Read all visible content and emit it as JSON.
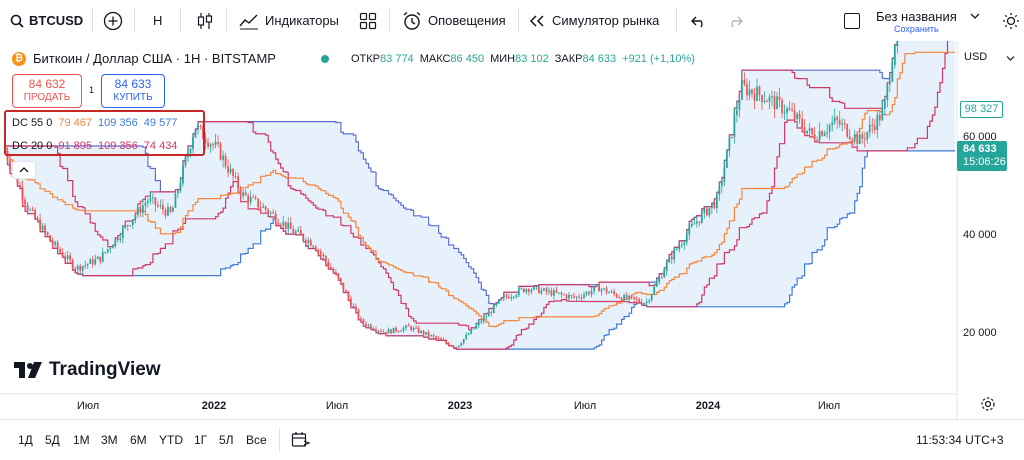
{
  "toolbar": {
    "symbol": "BTCUSD",
    "interval": "Н",
    "indicators_label": "Индикаторы",
    "alerts_label": "Оповещения",
    "replay_label": "Симулятор рынка",
    "layout_name": "Без названия",
    "layout_status": "Сохранить"
  },
  "header": {
    "title": "Биткоин / Доллар США · 1H · BITSTAMP",
    "open_label": "ОТКР",
    "open_value": "83 774",
    "high_label": "МАКС",
    "high_value": "86 450",
    "low_label": "МИН",
    "low_value": "83 102",
    "close_label": "ЗАКР",
    "close_value": "84 633",
    "change": "+921 (+1,10%)",
    "currency": "USD"
  },
  "trade": {
    "sell_price": "84 632",
    "sell_label": "ПРОДАТЬ",
    "spread": "1",
    "buy_price": "84 633",
    "buy_label": "КУПИТЬ"
  },
  "indicators": [
    {
      "name": "DC 55 0",
      "upper": "79 467",
      "basis": "109 356",
      "lower": "49 577"
    },
    {
      "name": "DC 20 0",
      "upper": "91 895",
      "basis": "109 356",
      "lower": "74 434"
    }
  ],
  "price_scale": {
    "ticks": [
      "60 000",
      "40 000",
      "20 000"
    ],
    "high_marker": "98 327",
    "last_price": "84 633",
    "countdown": "15:06:26"
  },
  "time_axis": [
    "Июл",
    "2022",
    "Июл",
    "2023",
    "Июл",
    "2024",
    "Июл"
  ],
  "watermark": "TradingView",
  "bottom": {
    "ranges": [
      "1Д",
      "5Д",
      "1М",
      "3М",
      "6М",
      "YTD",
      "1Г",
      "5Л",
      "Все"
    ],
    "clock": "11:53:34 UTC+3"
  },
  "colors": {
    "up": "#26a69a",
    "down": "#ef5350",
    "dc55": "#3f7bd6",
    "dc20": "#d03868",
    "basis": "#f7853a",
    "outer": "#5b6fd6",
    "fill": "#e3effb",
    "highlight": "#c62828"
  },
  "chart_data": {
    "type": "candlestick",
    "instrument": "BTCUSD",
    "timeframe": "1H",
    "x_ticks": [
      "Июл",
      "2022",
      "Июл",
      "2023",
      "Июл",
      "2024",
      "Июл"
    ],
    "y_ticks": [
      20000,
      40000,
      60000
    ],
    "ylim": [
      8000,
      105000
    ],
    "last": 84633,
    "ohlc": {
      "open": 83774,
      "high": 86450,
      "low": 83102,
      "close": 84633
    },
    "x": [
      2021.2,
      2021.3,
      2021.4,
      2021.5,
      2021.6,
      2021.7,
      2021.8,
      2021.9,
      2022.0,
      2022.1,
      2022.2,
      2022.3,
      2022.4,
      2022.5,
      2022.6,
      2022.7,
      2022.8,
      2022.9,
      2023.0,
      2023.1,
      2023.2,
      2023.3,
      2023.4,
      2023.5,
      2023.6,
      2023.7,
      2023.8,
      2023.9,
      2024.0,
      2024.1,
      2024.2,
      2024.3,
      2024.4,
      2024.5,
      2024.6,
      2024.7,
      2024.8,
      2024.9,
      2025.0,
      2025.2
    ],
    "close": [
      57000,
      45000,
      38000,
      33000,
      35000,
      41000,
      47000,
      44000,
      62000,
      57000,
      48000,
      45000,
      41000,
      38000,
      31000,
      22000,
      20000,
      21000,
      19000,
      17000,
      22000,
      27000,
      29000,
      28000,
      27000,
      29000,
      27000,
      26000,
      35000,
      42000,
      47000,
      70000,
      68000,
      65000,
      60000,
      63000,
      59000,
      65000,
      96000,
      84633
    ],
    "series": [
      {
        "name": "DC 55 0",
        "upper": 79467,
        "basis": 109356,
        "lower": 49577
      },
      {
        "name": "DC 20 0",
        "upper": 91895,
        "basis": 109356,
        "lower": 74434
      }
    ]
  }
}
